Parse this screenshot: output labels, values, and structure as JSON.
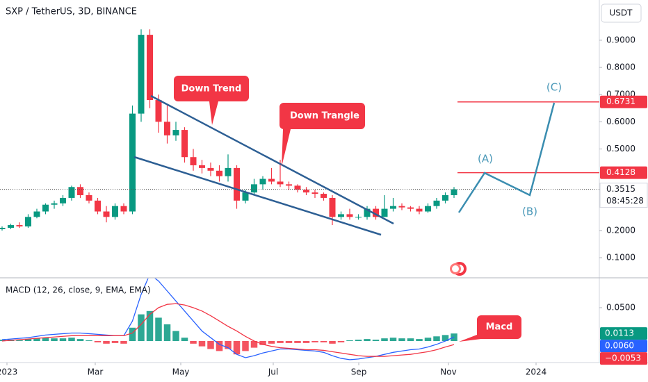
{
  "header": {
    "symbol": "SXP / TetherUS, 3D, BINANCE",
    "currency": "USDT"
  },
  "annotations": [
    "Down Trend",
    "Down Trangle",
    "(A)",
    "(B)",
    "(C)",
    "Macd"
  ],
  "chart_data": [
    {
      "type": "candlestick",
      "up_color": "#089981",
      "down_color": "#f23645",
      "xlim": [
        -0.24,
        68.72
      ],
      "ylim": [
        0.026,
        1.048
      ],
      "xticks": [
        {
          "value": 0.56,
          "label": "2023"
        },
        {
          "value": 10.72,
          "label": "Mar"
        },
        {
          "value": 20.56,
          "label": "May"
        },
        {
          "value": 31.2,
          "label": "Jul"
        },
        {
          "value": 41.04,
          "label": "Sep"
        },
        {
          "value": 51.36,
          "label": "Nov"
        },
        {
          "value": 61.44,
          "label": "2024"
        }
      ],
      "yticks": [
        {
          "value": 0.9,
          "label": "0.9000"
        },
        {
          "value": 0.8,
          "label": "0.8000"
        },
        {
          "value": 0.7,
          "label": "0.7000"
        },
        {
          "value": 0.6,
          "label": "0.6000"
        },
        {
          "value": 0.5,
          "label": "0.5000"
        },
        {
          "value": 0.2,
          "label": "0.2000"
        },
        {
          "value": 0.1,
          "label": "0.1000"
        }
      ],
      "grid": false,
      "ohlc": [
        [
          0.205,
          0.215,
          0.2,
          0.21
        ],
        [
          0.21,
          0.225,
          0.205,
          0.22
        ],
        [
          0.22,
          0.23,
          0.21,
          0.215
        ],
        [
          0.215,
          0.26,
          0.21,
          0.25
        ],
        [
          0.25,
          0.28,
          0.245,
          0.27
        ],
        [
          0.27,
          0.3,
          0.26,
          0.295
        ],
        [
          0.295,
          0.31,
          0.28,
          0.3
        ],
        [
          0.3,
          0.33,
          0.29,
          0.32
        ],
        [
          0.32,
          0.365,
          0.31,
          0.36
        ],
        [
          0.36,
          0.37,
          0.32,
          0.33
        ],
        [
          0.33,
          0.34,
          0.3,
          0.31
        ],
        [
          0.31,
          0.32,
          0.26,
          0.27
        ],
        [
          0.27,
          0.29,
          0.23,
          0.25
        ],
        [
          0.25,
          0.3,
          0.24,
          0.29
        ],
        [
          0.29,
          0.3,
          0.26,
          0.27
        ],
        [
          0.27,
          0.66,
          0.26,
          0.63
        ],
        [
          0.63,
          0.94,
          0.6,
          0.92
        ],
        [
          0.92,
          0.94,
          0.65,
          0.68
        ],
        [
          0.68,
          0.7,
          0.56,
          0.6
        ],
        [
          0.6,
          0.66,
          0.52,
          0.55
        ],
        [
          0.55,
          0.6,
          0.53,
          0.57
        ],
        [
          0.57,
          0.58,
          0.45,
          0.47
        ],
        [
          0.47,
          0.5,
          0.42,
          0.44
        ],
        [
          0.44,
          0.46,
          0.41,
          0.43
        ],
        [
          0.43,
          0.45,
          0.4,
          0.42
        ],
        [
          0.42,
          0.44,
          0.38,
          0.4
        ],
        [
          0.4,
          0.48,
          0.38,
          0.43
        ],
        [
          0.43,
          0.44,
          0.28,
          0.31
        ],
        [
          0.31,
          0.35,
          0.3,
          0.34
        ],
        [
          0.34,
          0.39,
          0.33,
          0.37
        ],
        [
          0.37,
          0.4,
          0.35,
          0.39
        ],
        [
          0.39,
          0.43,
          0.37,
          0.38
        ],
        [
          0.38,
          0.46,
          0.36,
          0.37
        ],
        [
          0.37,
          0.38,
          0.35,
          0.365
        ],
        [
          0.365,
          0.37,
          0.34,
          0.35
        ],
        [
          0.35,
          0.36,
          0.33,
          0.34
        ],
        [
          0.34,
          0.35,
          0.32,
          0.335
        ],
        [
          0.335,
          0.34,
          0.31,
          0.32
        ],
        [
          0.32,
          0.33,
          0.22,
          0.25
        ],
        [
          0.25,
          0.27,
          0.24,
          0.26
        ],
        [
          0.26,
          0.28,
          0.24,
          0.25
        ],
        [
          0.25,
          0.26,
          0.24,
          0.25
        ],
        [
          0.25,
          0.29,
          0.24,
          0.28
        ],
        [
          0.28,
          0.29,
          0.24,
          0.25
        ],
        [
          0.25,
          0.33,
          0.25,
          0.28
        ],
        [
          0.28,
          0.32,
          0.27,
          0.29
        ],
        [
          0.29,
          0.3,
          0.275,
          0.285
        ],
        [
          0.285,
          0.29,
          0.27,
          0.28
        ],
        [
          0.28,
          0.29,
          0.26,
          0.27
        ],
        [
          0.27,
          0.3,
          0.265,
          0.29
        ],
        [
          0.29,
          0.32,
          0.28,
          0.31
        ],
        [
          0.31,
          0.34,
          0.3,
          0.33
        ],
        [
          0.33,
          0.36,
          0.32,
          0.3515
        ]
      ],
      "price_lines": [
        {
          "value": 0.6731,
          "color": "#f23645"
        },
        {
          "value": 0.4128,
          "color": "#f23645"
        }
      ],
      "last_price": {
        "value": 0.3515,
        "countdown": "08:45:28"
      }
    },
    {
      "type": "macd",
      "title": "MACD (12, 26, close, 9, EMA, EMA)",
      "ylim": [
        -0.0323,
        0.0948
      ],
      "yticks": [
        {
          "value": 0.05,
          "label": "0.0500"
        }
      ],
      "series": [
        {
          "style": "histogram",
          "color": "#089981",
          "negative_color": "#f23645",
          "last_label": "0.0113",
          "values": [
            0.002,
            0.002,
            0.001,
            0.003,
            0.004,
            0.005,
            0.004,
            0.004,
            0.005,
            0.003,
            0.001,
            -0.002,
            -0.004,
            -0.003,
            -0.004,
            0.02,
            0.04,
            0.045,
            0.035,
            0.025,
            0.015,
            0.005,
            -0.004,
            -0.008,
            -0.012,
            -0.015,
            -0.012,
            -0.02,
            -0.015,
            -0.01,
            -0.006,
            -0.004,
            -0.003,
            -0.003,
            -0.003,
            -0.003,
            -0.002,
            -0.002,
            -0.004,
            -0.002,
            0.001,
            0.002,
            0.003,
            0.002,
            0.004,
            0.005,
            0.004,
            0.004,
            0.003,
            0.005,
            0.007,
            0.009,
            0.0113
          ]
        },
        {
          "style": "line",
          "color": "#2962ff",
          "last_label": "0.0060",
          "values": [
            0.002,
            0.003,
            0.004,
            0.005,
            0.007,
            0.009,
            0.01,
            0.011,
            0.012,
            0.012,
            0.011,
            0.01,
            0.009,
            0.008,
            0.008,
            0.03,
            0.07,
            0.1,
            0.09,
            0.075,
            0.06,
            0.045,
            0.03,
            0.015,
            0.005,
            -0.005,
            -0.01,
            -0.02,
            -0.025,
            -0.022,
            -0.018,
            -0.015,
            -0.012,
            -0.012,
            -0.013,
            -0.014,
            -0.015,
            -0.017,
            -0.022,
            -0.026,
            -0.028,
            -0.027,
            -0.025,
            -0.023,
            -0.02,
            -0.017,
            -0.015,
            -0.013,
            -0.012,
            -0.009,
            -0.005,
            0.0,
            0.006
          ]
        },
        {
          "style": "line",
          "color": "#f23645",
          "last_label": "−0.0053",
          "values": [
            0.0,
            0.001,
            0.002,
            0.003,
            0.004,
            0.005,
            0.006,
            0.007,
            0.008,
            0.008,
            0.008,
            0.008,
            0.008,
            0.008,
            0.008,
            0.012,
            0.025,
            0.04,
            0.05,
            0.055,
            0.056,
            0.054,
            0.05,
            0.045,
            0.038,
            0.03,
            0.022,
            0.015,
            0.007,
            0.0,
            -0.005,
            -0.008,
            -0.01,
            -0.011,
            -0.012,
            -0.013,
            -0.013,
            -0.014,
            -0.016,
            -0.018,
            -0.02,
            -0.022,
            -0.023,
            -0.023,
            -0.023,
            -0.022,
            -0.021,
            -0.02,
            -0.018,
            -0.016,
            -0.013,
            -0.009,
            -0.0053
          ]
        }
      ]
    }
  ]
}
